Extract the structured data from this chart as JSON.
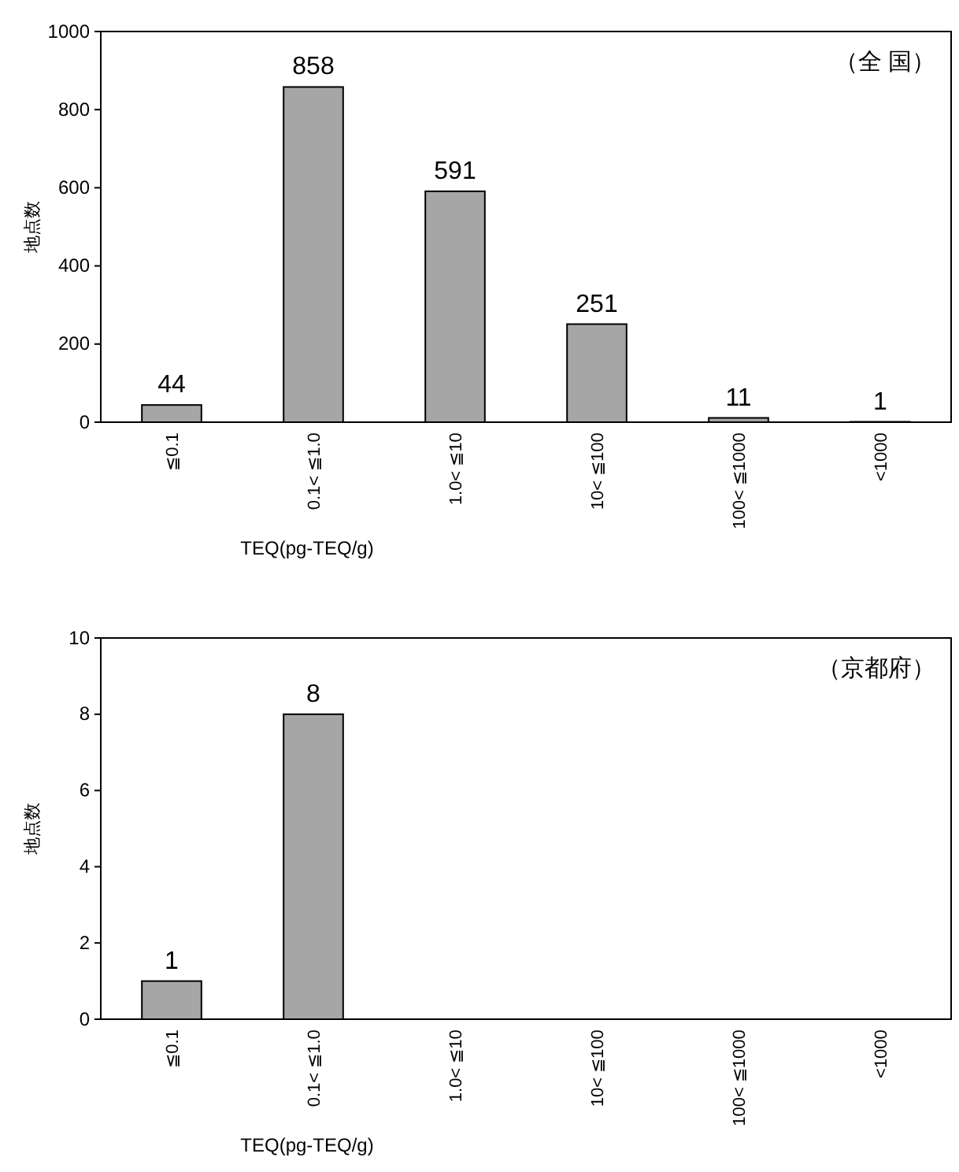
{
  "chart_data": [
    {
      "type": "bar",
      "categories": [
        "≦0.1",
        "0.1< ≦1.0",
        "1.0< ≦10",
        "10< ≦100",
        "100< ≦1000",
        "<1000"
      ],
      "values": [
        44,
        858,
        591,
        251,
        11,
        1
      ],
      "color": "#a6a6a6",
      "data_labels": true,
      "ylim": [
        0,
        1000
      ],
      "yticks": [
        0,
        200,
        400,
        600,
        800,
        1000
      ],
      "ylabel": "地点数",
      "xlabel": "TEQ(pg-TEQ/g)",
      "annotations": [
        "（全 国）"
      ],
      "grid": false
    },
    {
      "type": "bar",
      "categories": [
        "≦0.1",
        "0.1< ≦1.0",
        "1.0< ≦10",
        "10< ≦100",
        "100< ≦1000",
        "<1000"
      ],
      "values": [
        1,
        8,
        0,
        0,
        0,
        0
      ],
      "value_labels": [
        "1",
        "8",
        null,
        null,
        null,
        null
      ],
      "color": "#a6a6a6",
      "ylim": [
        0,
        10
      ],
      "yticks": [
        0,
        2,
        4,
        6,
        8,
        10
      ],
      "ylabel": "地点数",
      "xlabel": "TEQ(pg-TEQ/g)",
      "annotations": [
        "（京都府）"
      ],
      "grid": false
    }
  ]
}
